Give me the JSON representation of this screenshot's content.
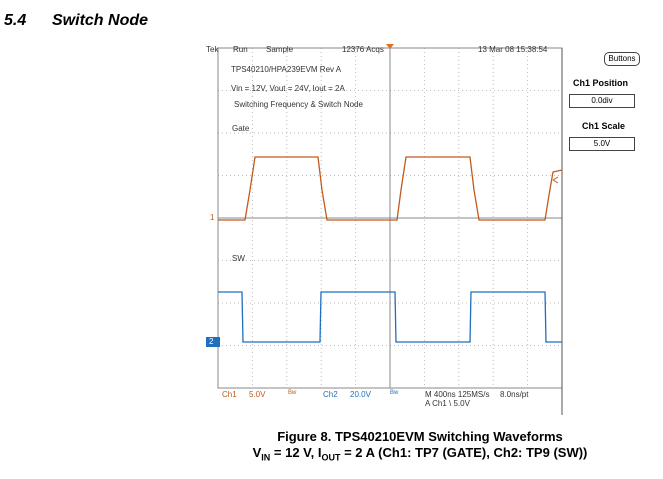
{
  "section": {
    "number": "5.4",
    "title": "Switch Node"
  },
  "scope": {
    "header": [
      "Tek",
      "Run",
      "Sample",
      "12376 Acqs",
      "13 Mar 08 15:38:54"
    ],
    "notes": [
      "TPS40210/HPA239EVM Rev A",
      "Vin = 12V, Vout = 24V, Iout = 2A",
      "Switching Frequency & Switch Node"
    ],
    "trace_labels": {
      "gate": "Gate",
      "sw": "SW"
    },
    "channel_markers": [
      "1",
      "2"
    ],
    "footer": {
      "ch1": "Ch1",
      "ch1_scale": "5.0V",
      "bw1": "Bw",
      "ch2": "Ch2",
      "ch2_scale": "20.0V",
      "bw2": "Bw",
      "timebase": "M 400ns 125MS/s",
      "resolution": "8.0ns/pt",
      "trigger": "A  Ch1  \\  5.0V"
    },
    "panel": {
      "button": "Buttons",
      "position_label": "Ch1 Position",
      "position_value": "0.0div",
      "scale_label": "Ch1 Scale",
      "scale_value": "5.0V"
    }
  },
  "caption": {
    "line1": "Figure 8. TPS40210EVM Switching Waveforms",
    "line2": [
      "V",
      "IN",
      " = 12 V, I",
      "OUT",
      " = 2 A (Ch1: TP7 (GATE), Ch2: TP9 (SW))"
    ]
  }
}
